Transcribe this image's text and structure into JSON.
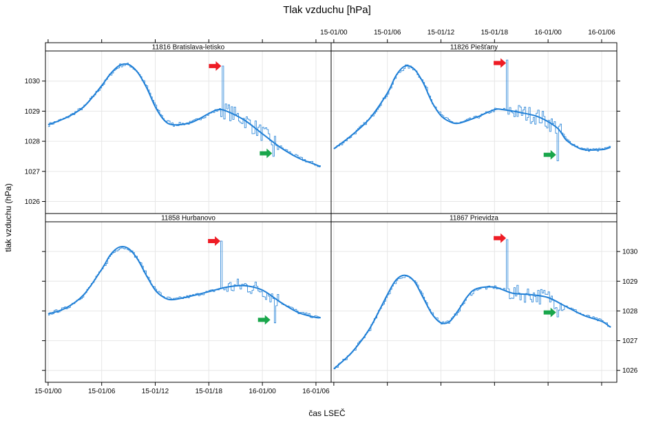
{
  "chart_data": {
    "type": "line",
    "title": "Tlak vzduchu [hPa]",
    "xlabel": "čas LSEČ",
    "ylabel": "tlak vzduchu (hPa)",
    "x_tick_labels": [
      "15-01/00",
      "15-01/06",
      "15-01/12",
      "15-01/18",
      "16-01/00",
      "16-01/06"
    ],
    "x_ticks_hours": [
      0,
      6,
      12,
      18,
      24,
      30
    ],
    "xlim_hours": [
      -0.3,
      31.7
    ],
    "ylim": [
      1025.6,
      1031.0
    ],
    "y_ticks": [
      1026,
      1027,
      1028,
      1029,
      1030
    ],
    "line_color": "#1f7fd6",
    "marker_colors": {
      "spike": "#ee1c25",
      "drop": "#19a64b"
    },
    "panels": [
      {
        "name": "11816 Bratislava-letisko",
        "smooth": [
          [
            0,
            1028.55
          ],
          [
            2,
            1028.78
          ],
          [
            4,
            1029.15
          ],
          [
            6,
            1029.85
          ],
          [
            7,
            1030.25
          ],
          [
            8,
            1030.52
          ],
          [
            9,
            1030.55
          ],
          [
            10,
            1030.3
          ],
          [
            11,
            1029.8
          ],
          [
            12,
            1029.15
          ],
          [
            13,
            1028.7
          ],
          [
            14,
            1028.55
          ],
          [
            16,
            1028.62
          ],
          [
            18,
            1028.92
          ],
          [
            19,
            1029.05
          ],
          [
            20,
            1029.0
          ],
          [
            22,
            1028.7
          ],
          [
            24,
            1028.25
          ],
          [
            26,
            1027.8
          ],
          [
            28,
            1027.45
          ],
          [
            30,
            1027.22
          ],
          [
            30.5,
            1027.15
          ]
        ],
        "spike": {
          "hour": 19.5,
          "value": 1030.5
        },
        "drop": {
          "hour": 25.2,
          "value": 1027.5
        },
        "spike_arrow": {
          "hour": 18.7,
          "value": 1030.5
        },
        "drop_arrow": {
          "hour": 24.4,
          "value": 1027.6
        }
      },
      {
        "name": "11826 Piešťany",
        "smooth": [
          [
            0,
            1027.75
          ],
          [
            2,
            1028.2
          ],
          [
            4,
            1028.75
          ],
          [
            6,
            1029.6
          ],
          [
            7,
            1030.2
          ],
          [
            8,
            1030.5
          ],
          [
            9,
            1030.4
          ],
          [
            10,
            1029.95
          ],
          [
            11,
            1029.3
          ],
          [
            12,
            1028.85
          ],
          [
            13,
            1028.65
          ],
          [
            14,
            1028.6
          ],
          [
            16,
            1028.8
          ],
          [
            18,
            1029.05
          ],
          [
            19,
            1029.05
          ],
          [
            21,
            1028.95
          ],
          [
            23,
            1028.8
          ],
          [
            25,
            1028.45
          ],
          [
            26,
            1028.05
          ],
          [
            27,
            1027.85
          ],
          [
            28,
            1027.72
          ],
          [
            30,
            1027.72
          ],
          [
            31,
            1027.8
          ]
        ],
        "spike": {
          "hour": 19.4,
          "value": 1030.7
        },
        "drop": {
          "hour": 25.0,
          "value": 1027.35
        },
        "spike_arrow": {
          "hour": 18.6,
          "value": 1030.6
        },
        "drop_arrow": {
          "hour": 24.2,
          "value": 1027.55
        }
      },
      {
        "name": "11858 Hurbanovo",
        "smooth": [
          [
            0,
            1027.9
          ],
          [
            2,
            1028.1
          ],
          [
            4,
            1028.55
          ],
          [
            6,
            1029.4
          ],
          [
            7,
            1029.9
          ],
          [
            8,
            1030.15
          ],
          [
            9,
            1030.1
          ],
          [
            10,
            1029.75
          ],
          [
            11,
            1029.2
          ],
          [
            12,
            1028.7
          ],
          [
            13,
            1028.45
          ],
          [
            14,
            1028.38
          ],
          [
            16,
            1028.5
          ],
          [
            18,
            1028.65
          ],
          [
            20,
            1028.8
          ],
          [
            22,
            1028.85
          ],
          [
            24,
            1028.7
          ],
          [
            26,
            1028.3
          ],
          [
            28,
            1027.95
          ],
          [
            30,
            1027.78
          ],
          [
            30.5,
            1027.78
          ]
        ],
        "spike": {
          "hour": 19.4,
          "value": 1030.35
        },
        "drop": {
          "hour": 25.3,
          "value": 1027.6
        },
        "spike_arrow": {
          "hour": 18.6,
          "value": 1030.35
        },
        "drop_arrow": {
          "hour": 24.2,
          "value": 1027.7
        }
      },
      {
        "name": "11867 Prievidza",
        "smooth": [
          [
            0,
            1026.05
          ],
          [
            2,
            1026.6
          ],
          [
            4,
            1027.4
          ],
          [
            6,
            1028.55
          ],
          [
            7,
            1029.05
          ],
          [
            8,
            1029.2
          ],
          [
            9,
            1029.0
          ],
          [
            10,
            1028.45
          ],
          [
            11,
            1027.9
          ],
          [
            12,
            1027.6
          ],
          [
            13,
            1027.65
          ],
          [
            14,
            1028.05
          ],
          [
            15,
            1028.5
          ],
          [
            16,
            1028.75
          ],
          [
            18,
            1028.8
          ],
          [
            20,
            1028.6
          ],
          [
            22,
            1028.55
          ],
          [
            24,
            1028.45
          ],
          [
            26,
            1028.15
          ],
          [
            28,
            1027.85
          ],
          [
            30,
            1027.65
          ],
          [
            31,
            1027.45
          ]
        ],
        "spike": {
          "hour": 19.4,
          "value": 1030.4
        },
        "drop": {
          "hour": 25.0,
          "value": 1027.8
        },
        "spike_arrow": {
          "hour": 18.6,
          "value": 1030.45
        },
        "drop_arrow": {
          "hour": 24.2,
          "value": 1027.95
        }
      }
    ]
  }
}
